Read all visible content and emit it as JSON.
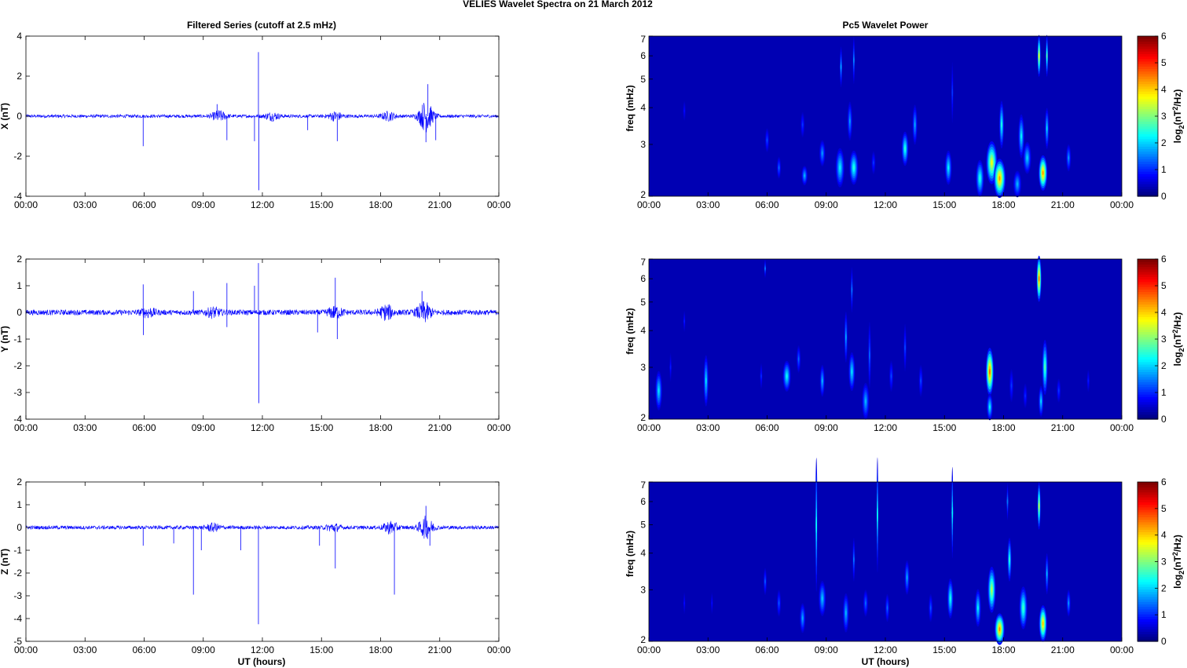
{
  "figure": {
    "title": "VELIES Wavelet Spectra on 21 March     2012",
    "left_title": "Filtered Series (cutoff at 2.5 mHz)",
    "right_title": "Pc5 Wavelet Power",
    "xlabel": "UT (hours)"
  },
  "chart_data": [
    {
      "type": "line",
      "name": "X",
      "title": "Filtered Series (cutoff at 2.5 mHz)",
      "ylabel": "X (nT)",
      "xlabel": "",
      "xlim": [
        0,
        24
      ],
      "ylim": [
        -4,
        4
      ],
      "xticks": [
        "00:00",
        "03:00",
        "06:00",
        "09:00",
        "12:00",
        "15:00",
        "18:00",
        "21:00",
        "00:00"
      ],
      "yticks": [
        "4",
        "2",
        "0",
        "-2",
        "-4"
      ],
      "yticks_values": [
        4,
        2,
        0,
        -2,
        -4
      ],
      "color": "#0000ff",
      "noise_amplitude_nT": 0.08,
      "bursts": [
        {
          "t": 9.8,
          "amp": 0.25
        },
        {
          "t": 12.5,
          "amp": 0.18
        },
        {
          "t": 15.7,
          "amp": 0.2
        },
        {
          "t": 18.4,
          "amp": 0.2
        },
        {
          "t": 20.3,
          "amp": 0.75
        }
      ],
      "spikes": [
        {
          "t": 5.95,
          "y": -1.5
        },
        {
          "t": 9.7,
          "y": 0.6
        },
        {
          "t": 10.2,
          "y": -1.2
        },
        {
          "t": 11.6,
          "y": -1.25
        },
        {
          "t": 11.8,
          "y": 3.2
        },
        {
          "t": 11.82,
          "y": -3.7
        },
        {
          "t": 14.3,
          "y": -0.7
        },
        {
          "t": 15.8,
          "y": -1.25
        },
        {
          "t": 20.4,
          "y": 1.6
        },
        {
          "t": 20.3,
          "y": -1.3
        },
        {
          "t": 20.8,
          "y": -1.2
        }
      ]
    },
    {
      "type": "line",
      "name": "Y",
      "title": "",
      "ylabel": "Y (nT)",
      "xlabel": "",
      "xlim": [
        0,
        24
      ],
      "ylim": [
        -4,
        2
      ],
      "xticks": [
        "00:00",
        "03:00",
        "06:00",
        "09:00",
        "12:00",
        "15:00",
        "18:00",
        "21:00",
        "00:00"
      ],
      "yticks": [
        "2",
        "1",
        "0",
        "-1",
        "-2",
        "-3",
        "-4"
      ],
      "yticks_values": [
        2,
        1,
        0,
        -1,
        -2,
        -3,
        -4
      ],
      "color": "#0000ff",
      "noise_amplitude_nT": 0.1,
      "bursts": [
        {
          "t": 6.2,
          "amp": 0.15
        },
        {
          "t": 9.5,
          "amp": 0.15
        },
        {
          "t": 15.7,
          "amp": 0.2
        },
        {
          "t": 18.3,
          "amp": 0.25
        },
        {
          "t": 20.2,
          "amp": 0.35
        }
      ],
      "spikes": [
        {
          "t": 5.95,
          "y": 1.05
        },
        {
          "t": 5.96,
          "y": -0.85
        },
        {
          "t": 8.5,
          "y": 0.8
        },
        {
          "t": 10.2,
          "y": 1.1
        },
        {
          "t": 10.2,
          "y": -0.55
        },
        {
          "t": 11.6,
          "y": 1.0
        },
        {
          "t": 11.8,
          "y": 1.85
        },
        {
          "t": 11.82,
          "y": -3.4
        },
        {
          "t": 14.8,
          "y": -0.75
        },
        {
          "t": 15.7,
          "y": 1.3
        },
        {
          "t": 15.8,
          "y": -1.0
        },
        {
          "t": 20.1,
          "y": 0.8
        }
      ]
    },
    {
      "type": "line",
      "name": "Z",
      "title": "",
      "ylabel": "Z (nT)",
      "xlabel": "UT (hours)",
      "xlim": [
        0,
        24
      ],
      "ylim": [
        -5,
        2
      ],
      "xticks": [
        "00:00",
        "03:00",
        "06:00",
        "09:00",
        "12:00",
        "15:00",
        "18:00",
        "21:00",
        "00:00"
      ],
      "yticks": [
        "2",
        "1",
        "0",
        "-1",
        "-2",
        "-3",
        "-4",
        "-5"
      ],
      "yticks_values": [
        2,
        1,
        0,
        -1,
        -2,
        -3,
        -4,
        -5
      ],
      "color": "#0000ff",
      "noise_amplitude_nT": 0.08,
      "bursts": [
        {
          "t": 9.5,
          "amp": 0.15
        },
        {
          "t": 15.6,
          "amp": 0.15
        },
        {
          "t": 18.5,
          "amp": 0.25
        },
        {
          "t": 20.3,
          "amp": 0.45
        }
      ],
      "spikes": [
        {
          "t": 5.95,
          "y": -0.8
        },
        {
          "t": 7.5,
          "y": -0.7
        },
        {
          "t": 8.5,
          "y": -2.95
        },
        {
          "t": 8.9,
          "y": -1.0
        },
        {
          "t": 10.9,
          "y": -1.0
        },
        {
          "t": 11.8,
          "y": -4.25
        },
        {
          "t": 14.9,
          "y": -0.8
        },
        {
          "t": 15.7,
          "y": -1.8
        },
        {
          "t": 18.7,
          "y": -2.95
        },
        {
          "t": 20.3,
          "y": 0.95
        },
        {
          "t": 20.5,
          "y": -0.8
        }
      ]
    },
    {
      "type": "heatmap",
      "name": "X-wavelet",
      "title": "Pc5 Wavelet Power",
      "ylabel": "freq (mHz)",
      "xlabel": "",
      "xlim": [
        0,
        24
      ],
      "ylim": [
        2,
        7
      ],
      "yscale": "log",
      "xticks": [
        "00:00",
        "03:00",
        "06:00",
        "09:00",
        "12:00",
        "15:00",
        "18:00",
        "21:00",
        "00:00"
      ],
      "yticks": [
        "7",
        "6",
        "5",
        "4",
        "3",
        "2"
      ],
      "yticks_values": [
        7,
        6,
        5,
        4,
        3,
        2
      ],
      "colorbar": {
        "label": "log2(nT^2/Hz)",
        "range": [
          0,
          6
        ],
        "ticks": [
          "6",
          "5",
          "4",
          "3",
          "2",
          "1",
          "0"
        ]
      },
      "blobs": [
        {
          "t": 1.8,
          "f": 3.9,
          "w": 0.07,
          "h": 0.25,
          "p": 0.5
        },
        {
          "t": 6.0,
          "f": 3.1,
          "w": 0.1,
          "h": 0.25,
          "p": 0.9
        },
        {
          "t": 6.6,
          "f": 2.5,
          "w": 0.1,
          "h": 0.18,
          "p": 1.1
        },
        {
          "t": 7.8,
          "f": 3.5,
          "w": 0.1,
          "h": 0.3,
          "p": 0.8
        },
        {
          "t": 7.9,
          "f": 2.35,
          "w": 0.15,
          "h": 0.15,
          "p": 1.6
        },
        {
          "t": 8.8,
          "f": 2.8,
          "w": 0.15,
          "h": 0.25,
          "p": 1.4
        },
        {
          "t": 9.7,
          "f": 2.5,
          "w": 0.22,
          "h": 0.35,
          "p": 2.0
        },
        {
          "t": 9.75,
          "f": 5.5,
          "w": 0.06,
          "h": 0.8,
          "p": 1.5
        },
        {
          "t": 10.2,
          "f": 3.6,
          "w": 0.12,
          "h": 0.5,
          "p": 1.4
        },
        {
          "t": 10.4,
          "f": 5.8,
          "w": 0.05,
          "h": 1.0,
          "p": 1.3
        },
        {
          "t": 10.4,
          "f": 2.5,
          "w": 0.22,
          "h": 0.3,
          "p": 2.3
        },
        {
          "t": 11.4,
          "f": 2.6,
          "w": 0.1,
          "h": 0.2,
          "p": 0.8
        },
        {
          "t": 13.0,
          "f": 2.9,
          "w": 0.17,
          "h": 0.35,
          "p": 2.3
        },
        {
          "t": 13.5,
          "f": 3.5,
          "w": 0.12,
          "h": 0.5,
          "p": 1.5
        },
        {
          "t": 15.2,
          "f": 2.5,
          "w": 0.17,
          "h": 0.3,
          "p": 2.0
        },
        {
          "t": 15.4,
          "f": 4.5,
          "w": 0.05,
          "h": 1.0,
          "p": 0.8
        },
        {
          "t": 16.8,
          "f": 2.3,
          "w": 0.2,
          "h": 0.3,
          "p": 2.3
        },
        {
          "t": 17.4,
          "f": 2.6,
          "w": 0.28,
          "h": 0.4,
          "p": 3.6
        },
        {
          "t": 17.8,
          "f": 2.3,
          "w": 0.3,
          "h": 0.35,
          "p": 4.3
        },
        {
          "t": 17.9,
          "f": 3.5,
          "w": 0.12,
          "h": 0.6,
          "p": 2.2
        },
        {
          "t": 18.7,
          "f": 2.2,
          "w": 0.2,
          "h": 0.2,
          "p": 1.6
        },
        {
          "t": 18.9,
          "f": 3.2,
          "w": 0.15,
          "h": 0.5,
          "p": 2.0
        },
        {
          "t": 19.2,
          "f": 2.7,
          "w": 0.2,
          "h": 0.3,
          "p": 1.8
        },
        {
          "t": 19.8,
          "f": 6.0,
          "w": 0.08,
          "h": 0.9,
          "p": 3.6
        },
        {
          "t": 20.0,
          "f": 2.4,
          "w": 0.22,
          "h": 0.3,
          "p": 4.3
        },
        {
          "t": 20.2,
          "f": 6.0,
          "w": 0.06,
          "h": 0.9,
          "p": 2.5
        },
        {
          "t": 20.2,
          "f": 3.4,
          "w": 0.1,
          "h": 0.5,
          "p": 1.8
        },
        {
          "t": 21.3,
          "f": 2.7,
          "w": 0.12,
          "h": 0.25,
          "p": 1.4
        }
      ]
    },
    {
      "type": "heatmap",
      "name": "Y-wavelet",
      "title": "",
      "ylabel": "freq (mHz)",
      "xlabel": "",
      "xlim": [
        0,
        24
      ],
      "ylim": [
        2,
        7
      ],
      "yscale": "log",
      "xticks": [
        "00:00",
        "03:00",
        "06:00",
        "09:00",
        "12:00",
        "15:00",
        "18:00",
        "21:00",
        "00:00"
      ],
      "yticks": [
        "7",
        "6",
        "5",
        "4",
        "3",
        "2"
      ],
      "yticks_values": [
        7,
        6,
        5,
        4,
        3,
        2
      ],
      "colorbar": {
        "label": "log2(nT^2/Hz)",
        "range": [
          0,
          6
        ],
        "ticks": [
          "6",
          "5",
          "4",
          "3",
          "2",
          "1",
          "0"
        ]
      },
      "blobs": [
        {
          "t": 0.5,
          "f": 2.5,
          "w": 0.17,
          "h": 0.35,
          "p": 1.9
        },
        {
          "t": 1.1,
          "f": 3.0,
          "w": 0.05,
          "h": 0.3,
          "p": 0.6
        },
        {
          "t": 1.8,
          "f": 4.3,
          "w": 0.05,
          "h": 0.3,
          "p": 0.6
        },
        {
          "t": 2.9,
          "f": 2.7,
          "w": 0.12,
          "h": 0.5,
          "p": 1.9
        },
        {
          "t": 5.7,
          "f": 2.8,
          "w": 0.06,
          "h": 0.25,
          "p": 0.7
        },
        {
          "t": 5.9,
          "f": 6.5,
          "w": 0.04,
          "h": 0.4,
          "p": 1.2
        },
        {
          "t": 7.0,
          "f": 2.8,
          "w": 0.2,
          "h": 0.3,
          "p": 2.1
        },
        {
          "t": 7.6,
          "f": 3.2,
          "w": 0.1,
          "h": 0.3,
          "p": 1.1
        },
        {
          "t": 8.8,
          "f": 2.7,
          "w": 0.12,
          "h": 0.3,
          "p": 1.6
        },
        {
          "t": 10.0,
          "f": 3.8,
          "w": 0.08,
          "h": 0.7,
          "p": 1.5
        },
        {
          "t": 10.3,
          "f": 2.9,
          "w": 0.16,
          "h": 0.4,
          "p": 1.9
        },
        {
          "t": 10.3,
          "f": 5.5,
          "w": 0.05,
          "h": 0.9,
          "p": 1.2
        },
        {
          "t": 11.0,
          "f": 2.3,
          "w": 0.18,
          "h": 0.3,
          "p": 1.6
        },
        {
          "t": 11.2,
          "f": 3.3,
          "w": 0.07,
          "h": 0.8,
          "p": 1.1
        },
        {
          "t": 12.3,
          "f": 2.8,
          "w": 0.1,
          "h": 0.3,
          "p": 0.9
        },
        {
          "t": 13.0,
          "f": 3.5,
          "w": 0.07,
          "h": 0.6,
          "p": 0.9
        },
        {
          "t": 13.8,
          "f": 2.7,
          "w": 0.1,
          "h": 0.3,
          "p": 0.9
        },
        {
          "t": 17.3,
          "f": 2.9,
          "w": 0.2,
          "h": 0.5,
          "p": 4.6
        },
        {
          "t": 17.3,
          "f": 2.2,
          "w": 0.15,
          "h": 0.2,
          "p": 2.0
        },
        {
          "t": 18.4,
          "f": 2.6,
          "w": 0.1,
          "h": 0.3,
          "p": 0.8
        },
        {
          "t": 19.1,
          "f": 2.4,
          "w": 0.1,
          "h": 0.2,
          "p": 0.7
        },
        {
          "t": 19.8,
          "f": 6.0,
          "w": 0.12,
          "h": 1.0,
          "p": 4.5
        },
        {
          "t": 20.1,
          "f": 3.0,
          "w": 0.14,
          "h": 0.6,
          "p": 2.6
        },
        {
          "t": 19.9,
          "f": 2.3,
          "w": 0.12,
          "h": 0.25,
          "p": 1.8
        },
        {
          "t": 20.8,
          "f": 2.5,
          "w": 0.1,
          "h": 0.2,
          "p": 0.8
        },
        {
          "t": 22.3,
          "f": 2.7,
          "w": 0.07,
          "h": 0.2,
          "p": 0.6
        }
      ]
    },
    {
      "type": "heatmap",
      "name": "Z-wavelet",
      "title": "",
      "ylabel": "freq (mHz)",
      "xlabel": "UT (hours)",
      "xlim": [
        0,
        24
      ],
      "ylim": [
        2,
        7
      ],
      "yscale": "log",
      "xticks": [
        "00:00",
        "03:00",
        "06:00",
        "09:00",
        "12:00",
        "15:00",
        "18:00",
        "21:00",
        "00:00"
      ],
      "yticks": [
        "7",
        "6",
        "5",
        "4",
        "3",
        "2"
      ],
      "yticks_values": [
        7,
        6,
        5,
        4,
        3,
        2
      ],
      "colorbar": {
        "label": "log2(nT^2/Hz)",
        "range": [
          0,
          6
        ],
        "ticks": [
          "6",
          "5",
          "4",
          "3",
          "2",
          "1",
          "0"
        ]
      },
      "blobs": [
        {
          "t": 1.8,
          "f": 2.7,
          "w": 0.05,
          "h": 0.2,
          "p": 0.5
        },
        {
          "t": 3.2,
          "f": 2.7,
          "w": 0.05,
          "h": 0.2,
          "p": 0.5
        },
        {
          "t": 5.9,
          "f": 3.2,
          "w": 0.08,
          "h": 0.3,
          "p": 1.0
        },
        {
          "t": 6.6,
          "f": 2.7,
          "w": 0.1,
          "h": 0.25,
          "p": 1.0
        },
        {
          "t": 7.8,
          "f": 2.4,
          "w": 0.14,
          "h": 0.25,
          "p": 1.5
        },
        {
          "t": 8.5,
          "f": 5.0,
          "w": 0.05,
          "h": 2.5,
          "p": 2.1
        },
        {
          "t": 8.8,
          "f": 2.8,
          "w": 0.18,
          "h": 0.35,
          "p": 1.7
        },
        {
          "t": 10.0,
          "f": 2.5,
          "w": 0.15,
          "h": 0.35,
          "p": 1.6
        },
        {
          "t": 10.4,
          "f": 3.8,
          "w": 0.06,
          "h": 0.6,
          "p": 1.2
        },
        {
          "t": 11.0,
          "f": 2.7,
          "w": 0.12,
          "h": 0.25,
          "p": 1.1
        },
        {
          "t": 11.6,
          "f": 5.4,
          "w": 0.04,
          "h": 2.5,
          "p": 2.0
        },
        {
          "t": 12.1,
          "f": 2.6,
          "w": 0.1,
          "h": 0.25,
          "p": 1.1
        },
        {
          "t": 13.1,
          "f": 3.3,
          "w": 0.12,
          "h": 0.4,
          "p": 1.5
        },
        {
          "t": 14.3,
          "f": 2.6,
          "w": 0.1,
          "h": 0.25,
          "p": 1.0
        },
        {
          "t": 15.3,
          "f": 2.8,
          "w": 0.15,
          "h": 0.4,
          "p": 2.2
        },
        {
          "t": 15.4,
          "f": 5.5,
          "w": 0.04,
          "h": 2.0,
          "p": 2.0
        },
        {
          "t": 16.7,
          "f": 2.6,
          "w": 0.15,
          "h": 0.35,
          "p": 2.0
        },
        {
          "t": 17.4,
          "f": 3.0,
          "w": 0.2,
          "h": 0.5,
          "p": 3.2
        },
        {
          "t": 17.8,
          "f": 2.2,
          "w": 0.25,
          "h": 0.3,
          "p": 4.4
        },
        {
          "t": 18.3,
          "f": 3.8,
          "w": 0.1,
          "h": 0.6,
          "p": 2.3
        },
        {
          "t": 18.2,
          "f": 6.0,
          "w": 0.04,
          "h": 0.8,
          "p": 1.2
        },
        {
          "t": 19.0,
          "f": 2.6,
          "w": 0.2,
          "h": 0.4,
          "p": 2.5
        },
        {
          "t": 19.8,
          "f": 5.8,
          "w": 0.08,
          "h": 1.0,
          "p": 3.3
        },
        {
          "t": 20.0,
          "f": 2.3,
          "w": 0.2,
          "h": 0.3,
          "p": 4.0
        },
        {
          "t": 20.2,
          "f": 3.4,
          "w": 0.08,
          "h": 0.5,
          "p": 1.6
        },
        {
          "t": 21.3,
          "f": 2.7,
          "w": 0.1,
          "h": 0.25,
          "p": 1.4
        }
      ]
    }
  ]
}
